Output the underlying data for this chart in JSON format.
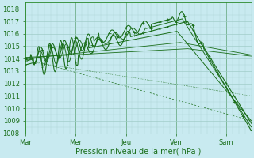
{
  "bg_color": "#c8eaf0",
  "grid_color": "#a0ccc8",
  "line_color": "#1a6e1a",
  "ylim": [
    1008,
    1018.5
  ],
  "ytick_min": 1008,
  "ytick_max": 1018,
  "xlabel": "Pression niveau de la mer( hPa )",
  "day_labels": [
    "Mar",
    "Mer",
    "Jeu",
    "Ven",
    "Sam"
  ],
  "day_positions": [
    0,
    48,
    96,
    144,
    192
  ],
  "xlim": [
    0,
    216
  ],
  "label_fontsize": 7.0,
  "tick_fontsize": 6.0
}
